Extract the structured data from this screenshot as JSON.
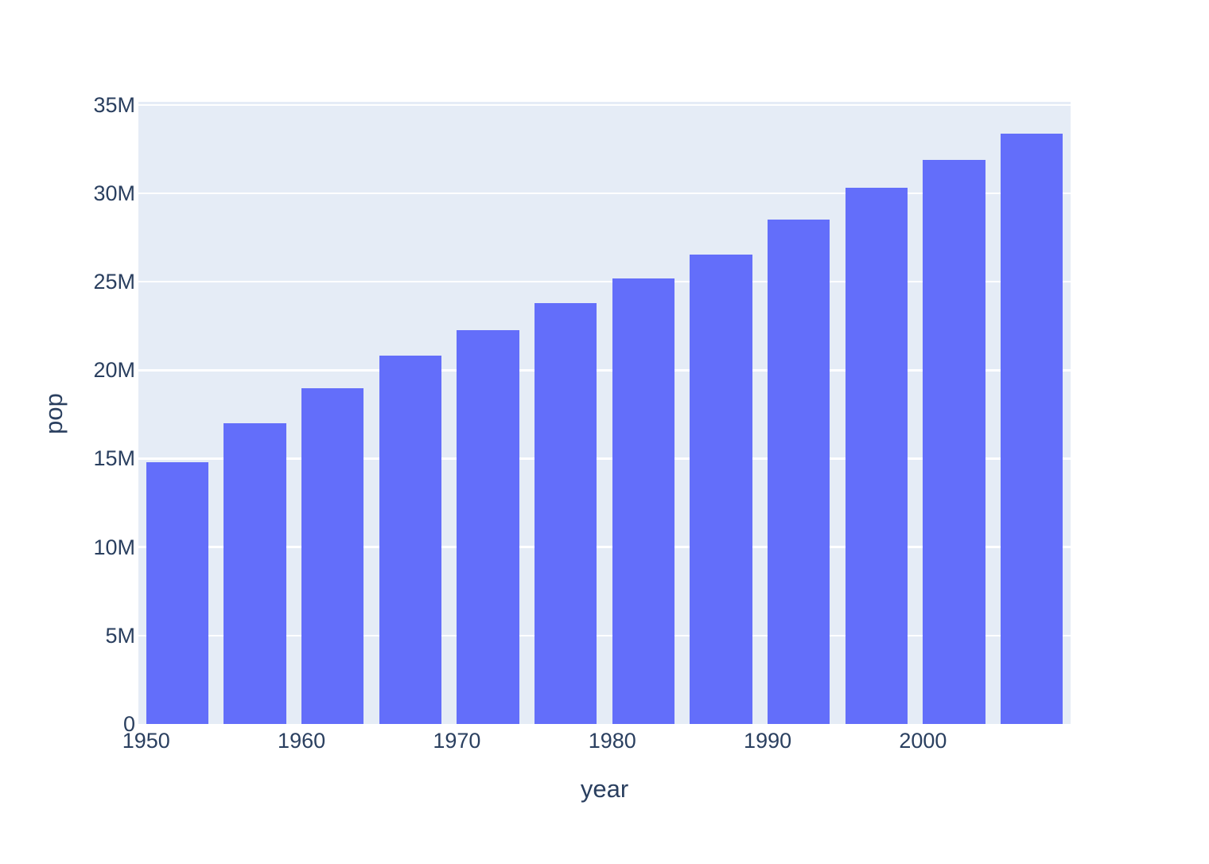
{
  "chart_data": {
    "type": "bar",
    "title": "",
    "xlabel": "year",
    "ylabel": "pop",
    "categories": [
      1952,
      1957,
      1962,
      1967,
      1972,
      1977,
      1982,
      1987,
      1992,
      1997,
      2002,
      2007
    ],
    "values": [
      14785584,
      17010154,
      18985849,
      20819767,
      22284500,
      23796400,
      25201900,
      26549700,
      28523502,
      30305843,
      31902268,
      33390141
    ],
    "series_name": "pop",
    "xlim": [
      1949.5,
      2009.5
    ],
    "ylim": [
      0,
      35170000
    ],
    "bar_width_in_x_units": 4,
    "grid": "horizontal",
    "legend_position": "none",
    "yticks": [
      {
        "value": 0,
        "label": "0"
      },
      {
        "value": 5000000,
        "label": "5M"
      },
      {
        "value": 10000000,
        "label": "10M"
      },
      {
        "value": 15000000,
        "label": "15M"
      },
      {
        "value": 20000000,
        "label": "20M"
      },
      {
        "value": 25000000,
        "label": "25M"
      },
      {
        "value": 30000000,
        "label": "30M"
      },
      {
        "value": 35000000,
        "label": "35M"
      }
    ],
    "xticks": [
      {
        "value": 1950,
        "label": "1950"
      },
      {
        "value": 1960,
        "label": "1960"
      },
      {
        "value": 1970,
        "label": "1970"
      },
      {
        "value": 1980,
        "label": "1980"
      },
      {
        "value": 1990,
        "label": "1990"
      },
      {
        "value": 2000,
        "label": "2000"
      }
    ],
    "colors": {
      "bar": "#636efa",
      "plot_background": "#e5ecf6",
      "figure_background": "#ffffff",
      "gridline": "#ffffff",
      "text": "#2a3f5f"
    }
  }
}
